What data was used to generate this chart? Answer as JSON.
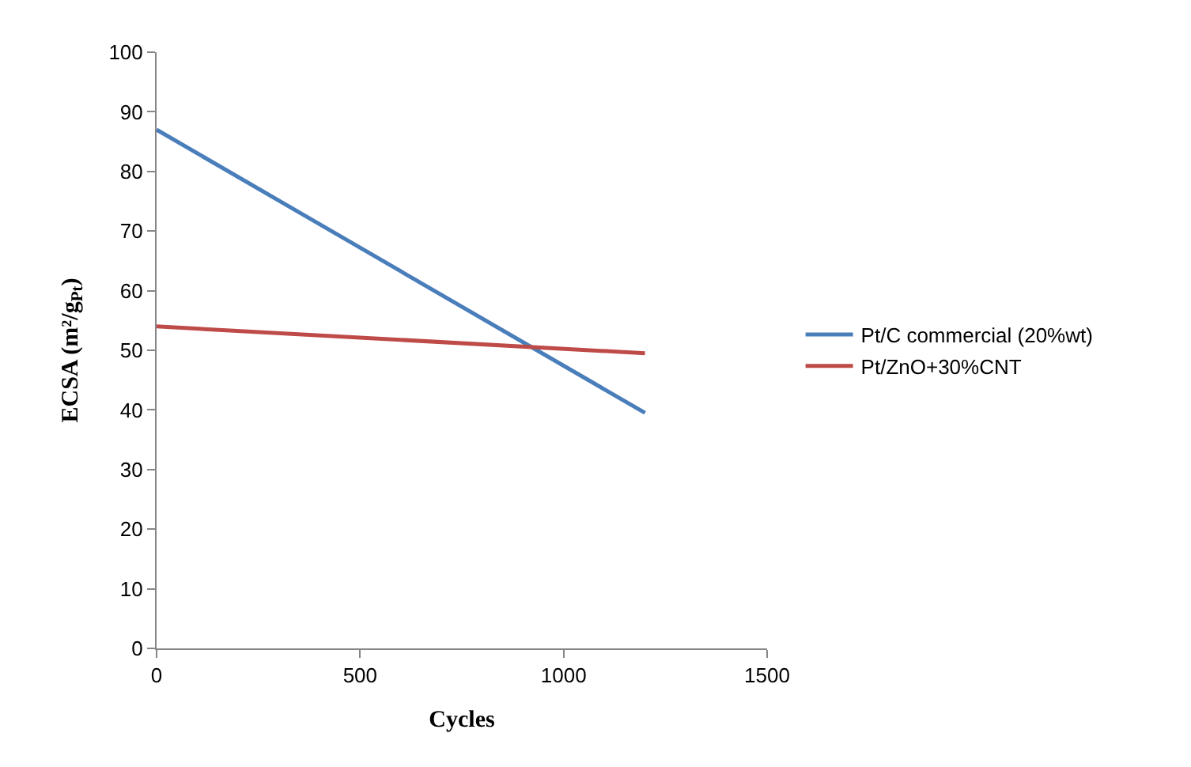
{
  "chart_data": {
    "type": "line",
    "xlabel": "Cycles",
    "ylabel": "ECSA (m²/g$_{Pt}$)",
    "xlim": [
      0,
      1500
    ],
    "xticks": [
      0,
      500,
      1000,
      1500
    ],
    "ylim": [
      0,
      100
    ],
    "yticks": [
      0,
      10,
      20,
      30,
      40,
      50,
      60,
      70,
      80,
      90,
      100
    ],
    "x": [
      0,
      1200
    ],
    "series": [
      {
        "name": "Pt/C commercial (20%wt)",
        "color": "#4a7ebb",
        "values": [
          87,
          39.5
        ]
      },
      {
        "name": "Pt/ZnO+30%CNT",
        "color": "#be4b48",
        "values": [
          54,
          49.5
        ]
      }
    ],
    "grid": false,
    "legend": "right",
    "marker": "none",
    "line_style": "solid"
  }
}
